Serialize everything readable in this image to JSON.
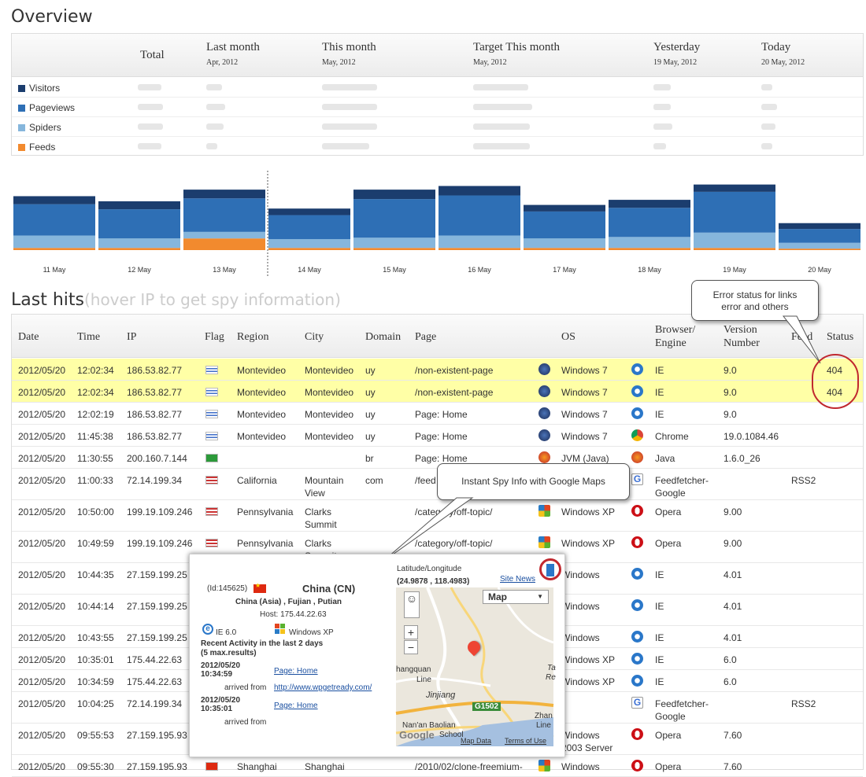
{
  "overview": {
    "title": "Overview",
    "columns": [
      {
        "title": "Total",
        "sub": ""
      },
      {
        "title": "Last month",
        "sub": "Apr, 2012"
      },
      {
        "title": "This month",
        "sub": "May, 2012"
      },
      {
        "title": "Target This month",
        "sub": "May, 2012"
      },
      {
        "title": "Yesterday",
        "sub": "19 May, 2012"
      },
      {
        "title": "Today",
        "sub": "20 May, 2012"
      }
    ],
    "rows": [
      {
        "label": "Visitors",
        "color": "#1b3d6e"
      },
      {
        "label": "Pageviews",
        "color": "#2e6fb5"
      },
      {
        "label": "Spiders",
        "color": "#86b6dc"
      },
      {
        "label": "Feeds",
        "color": "#f28a2e"
      }
    ]
  },
  "chart": {
    "days": [
      "11 May",
      "12 May",
      "13 May",
      "14 May",
      "15 May",
      "16 May",
      "17 May",
      "18 May",
      "19 May",
      "20 May"
    ],
    "visitors": [
      11,
      11,
      12,
      9,
      13,
      13,
      9,
      11,
      10,
      8
    ],
    "pageviews": [
      43,
      40,
      46,
      33,
      53,
      55,
      37,
      40,
      56,
      19
    ],
    "spiders": [
      17,
      13,
      9,
      12,
      14,
      17,
      13,
      15,
      21,
      8
    ],
    "feeds": [
      3,
      3,
      16,
      3,
      3,
      3,
      3,
      3,
      3,
      2
    ],
    "colors": {
      "visitors": "#1b3d6e",
      "pageviews": "#2e6fb5",
      "spiders": "#86b6dc",
      "feeds": "#f28a2e"
    }
  },
  "last_hits": {
    "title": "Last hits",
    "subtitle": "(hover IP to get spy information)",
    "headers": {
      "date": "Date",
      "time": "Time",
      "ip": "IP",
      "flag": "Flag",
      "region": "Region",
      "city": "City",
      "domain": "Domain",
      "page": "Page",
      "os": "OS",
      "browser": "Browser/\nEngine",
      "version": "Version\nNumber",
      "feed": "Feed",
      "status": "Status"
    },
    "rows": [
      {
        "date": "2012/05/20",
        "time": "12:02:34",
        "ip": "186.53.82.77",
        "flag": "uy",
        "region": "Montevideo",
        "city": "Montevideo",
        "domain": "uy",
        "page": "/non-existent-page",
        "os": "Windows 7",
        "browser": "IE",
        "version": "9.0",
        "feed": "",
        "status": "404",
        "hl": true
      },
      {
        "date": "2012/05/20",
        "time": "12:02:34",
        "ip": "186.53.82.77",
        "flag": "uy",
        "region": "Montevideo",
        "city": "Montevideo",
        "domain": "uy",
        "page": "/non-existent-page",
        "os": "Windows 7",
        "browser": "IE",
        "version": "9.0",
        "feed": "",
        "status": "404",
        "hl": true
      },
      {
        "date": "2012/05/20",
        "time": "12:02:19",
        "ip": "186.53.82.77",
        "flag": "uy",
        "region": "Montevideo",
        "city": "Montevideo",
        "domain": "uy",
        "page": "Page: Home",
        "os": "Windows 7",
        "browser": "IE",
        "version": "9.0",
        "feed": "",
        "status": ""
      },
      {
        "date": "2012/05/20",
        "time": "11:45:38",
        "ip": "186.53.82.77",
        "flag": "uy",
        "region": "Montevideo",
        "city": "Montevideo",
        "domain": "uy",
        "page": "Page: Home",
        "os": "Windows 7",
        "browser": "Chrome",
        "version": "19.0.1084.46",
        "feed": "",
        "status": ""
      },
      {
        "date": "2012/05/20",
        "time": "11:30:55",
        "ip": "200.160.7.144",
        "flag": "br",
        "region": "",
        "city": "",
        "domain": "br",
        "page": "Page: Home",
        "os": "JVM (Java)",
        "browser": "Java",
        "version": "1.6.0_26",
        "feed": "",
        "status": ""
      },
      {
        "date": "2012/05/20",
        "time": "11:00:33",
        "ip": "72.14.199.34",
        "flag": "us",
        "region": "California",
        "city": "Mountain\nView",
        "domain": "com",
        "page": "/feed",
        "os": "",
        "browser": "Feedfetcher-\nGoogle",
        "version": "",
        "feed": "RSS2",
        "status": ""
      },
      {
        "date": "2012/05/20",
        "time": "10:50:00",
        "ip": "199.19.109.246",
        "flag": "us",
        "region": "Pennsylvania",
        "city": "Clarks\nSummit",
        "domain": "",
        "page": "/category/off-topic/",
        "os": "Windows XP",
        "browser": "Opera",
        "version": "9.00",
        "feed": "",
        "status": ""
      },
      {
        "date": "2012/05/20",
        "time": "10:49:59",
        "ip": "199.19.109.246",
        "flag": "us",
        "region": "Pennsylvania",
        "city": "Clarks\nSummit",
        "domain": "",
        "page": "/category/off-topic/",
        "os": "Windows XP",
        "browser": "Opera",
        "version": "9.00",
        "feed": "",
        "status": ""
      },
      {
        "date": "2012/05/20",
        "time": "10:44:35",
        "ip": "27.159.199.25",
        "flag": "",
        "region": "",
        "city": "",
        "domain": "",
        "page": "",
        "os": "Windows",
        "browser": "IE",
        "version": "4.01",
        "feed": "",
        "status": ""
      },
      {
        "date": "2012/05/20",
        "time": "10:44:14",
        "ip": "27.159.199.25",
        "flag": "",
        "region": "",
        "city": "",
        "domain": "",
        "page": "",
        "os": "Windows",
        "browser": "IE",
        "version": "4.01",
        "feed": "",
        "status": ""
      },
      {
        "date": "2012/05/20",
        "time": "10:43:55",
        "ip": "27.159.199.25",
        "flag": "",
        "region": "",
        "city": "",
        "domain": "",
        "page": "",
        "os": "Windows",
        "browser": "IE",
        "version": "4.01",
        "feed": "",
        "status": ""
      },
      {
        "date": "2012/05/20",
        "time": "10:35:01",
        "ip": "175.44.22.63",
        "flag": "",
        "region": "",
        "city": "",
        "domain": "",
        "page": "",
        "os": "Windows XP",
        "browser": "IE",
        "version": "6.0",
        "feed": "",
        "status": ""
      },
      {
        "date": "2012/05/20",
        "time": "10:34:59",
        "ip": "175.44.22.63",
        "flag": "",
        "region": "",
        "city": "",
        "domain": "",
        "page": "",
        "os": "Windows XP",
        "browser": "IE",
        "version": "6.0",
        "feed": "",
        "status": ""
      },
      {
        "date": "2012/05/20",
        "time": "10:04:25",
        "ip": "72.14.199.34",
        "flag": "",
        "region": "",
        "city": "",
        "domain": "",
        "page": "",
        "os": "",
        "browser": "Feedfetcher-\nGoogle",
        "version": "",
        "feed": "RSS2",
        "status": ""
      },
      {
        "date": "2012/05/20",
        "time": "09:55:53",
        "ip": "27.159.195.93",
        "flag": "",
        "region": "",
        "city": "",
        "domain": "",
        "page": "",
        "os": "Windows\n2003 Server",
        "browser": "Opera",
        "version": "7.60",
        "feed": "",
        "status": ""
      },
      {
        "date": "2012/05/20",
        "time": "09:55:30",
        "ip": "27.159.195.93",
        "flag": "cn",
        "region": "Shanghai",
        "city": "Shanghai",
        "domain": "",
        "page": "/2010/02/clone-freemium-",
        "os": "Windows",
        "browser": "Opera",
        "version": "7.60",
        "feed": "",
        "status": ""
      }
    ]
  },
  "callouts": {
    "error": "Error status for links\nerror and others",
    "spy": "Instant Spy Info with Google Maps"
  },
  "spy": {
    "id": "(Id:145625)",
    "country": "China (CN)",
    "location": "China (Asia) , Fujian , Putian",
    "host": "Host: 175.44.22.63",
    "browser": "IE 6.0",
    "os": "Windows XP",
    "recent_title": "Recent Activity in the last 2 days",
    "recent_sub": "(5 max.results)",
    "a1_date": "2012/05/20",
    "a1_time": "10:34:59",
    "a1_page": "Page: Home",
    "a1_from_label": "arrived from",
    "a1_from": "http://www.wpgetready.com/",
    "a2_date": "2012/05/20",
    "a2_time": "10:35:01",
    "a2_page": "Page: Home",
    "a2_from_label": "arrived from",
    "latlng_label": "Latitude/Longitude",
    "latlng": "(24.9878 , 118.4983)",
    "site_news": "Site News",
    "map_type": "Map",
    "map_labels": {
      "l1": "hangquan",
      "l2": "Line",
      "l3": "Jinjiang",
      "l4": "G1502",
      "l5": "Nan'an Baolian",
      "l6": "Zhan",
      "l7": "Line",
      "l8": "Ta",
      "l9": "Re",
      "l10": "School"
    },
    "map_data": "Map Data",
    "terms": "Terms of Use",
    "google": "Google"
  }
}
